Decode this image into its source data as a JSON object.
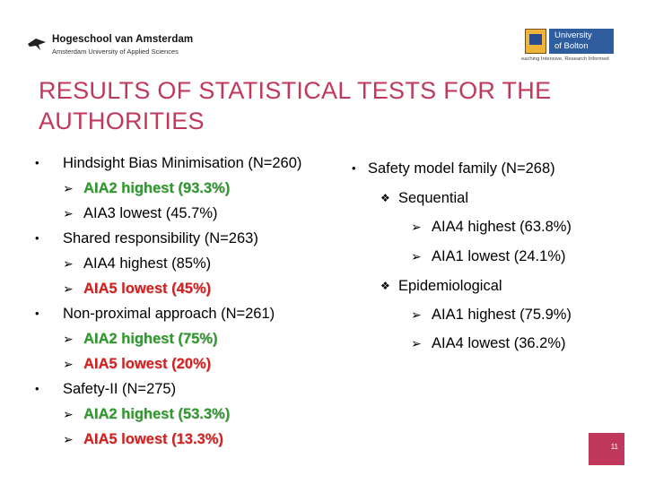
{
  "header": {
    "hva_name": "Hogeschool van Amsterdam",
    "hva_sub": "Amsterdam University of Applied Sciences",
    "bolton_line1": "University",
    "bolton_line2": "of Bolton",
    "bolton_tag": "eaching Intensive, Research Informed"
  },
  "title": "RESULTS OF STATISTICAL TESTS FOR THE AUTHORITIES",
  "left_column": {
    "b1": "Hindsight Bias Minimisation (N=260)",
    "b1_s1": "AIA2 highest (93.3%)",
    "b1_s2": "AIA3 lowest (45.7%)",
    "b2": "Shared responsibility (N=263)",
    "b2_s1": "AIA4 highest (85%)",
    "b2_s2": "AIA5 lowest (45%)",
    "b3": "Non-proximal approach (N=261)",
    "b3_s1": "AIA2 highest (75%)",
    "b3_s2": "AIA5 lowest (20%)",
    "b4": "Safety-II (N=275)",
    "b4_s1": "AIA2 highest (53.3%)",
    "b4_s2": "AIA5 lowest (13.3%)"
  },
  "right_column": {
    "b1": "Safety model family (N=268)",
    "sub1": "Sequential",
    "sub1_s1": "AIA4 highest (63.8%)",
    "sub1_s2": "AIA1 lowest (24.1%)",
    "sub2": "Epidemiological",
    "sub2_s1": "AIA1 highest (75.9%)",
    "sub2_s2": "AIA4 lowest (36.2%)"
  },
  "symbols": {
    "bullet": "•",
    "arrow": "➢",
    "diamond": "❖"
  },
  "colors": {
    "title": "#c0395c",
    "highlight_green": "#2e9a2c",
    "highlight_red": "#d81e1e",
    "page_box": "#c0395c"
  },
  "page_number": "11"
}
